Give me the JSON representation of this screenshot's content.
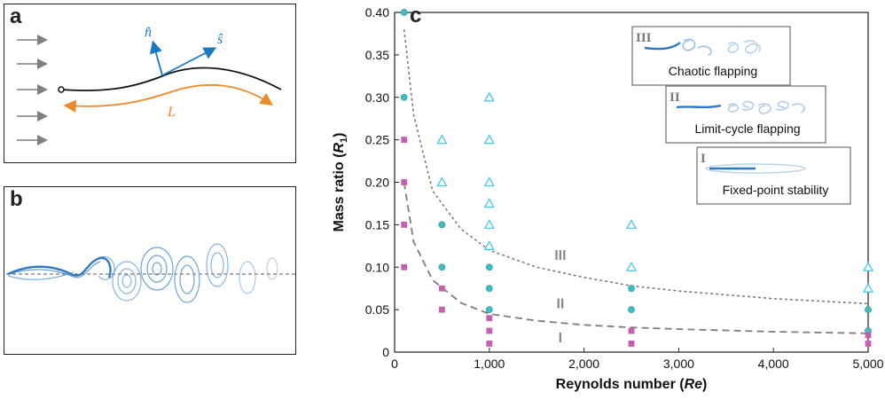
{
  "panels": {
    "a": {
      "letter": "a",
      "normal_vector": "n̂",
      "tangent_vector": "ŝ",
      "length_label": "L"
    },
    "b": {
      "letter": "b"
    },
    "c": {
      "letter": "c"
    }
  },
  "colors": {
    "arrow_gray": "#7f7f7f",
    "vector_blue": "#1a7abf",
    "length_orange": "#ea8a2a",
    "wake_blue": "#2f79c4",
    "triangle_cyan": "#4cc6e6",
    "circle_teal": "#3fbcc0",
    "square_magenta": "#c65fb0",
    "curve_gray": "#7d7d7d"
  },
  "chart_data": {
    "type": "scatter",
    "xlabel": "Reynolds number (Re)",
    "ylabel": "Mass ratio (R1)",
    "xlim": [
      0,
      5000
    ],
    "ylim": [
      0,
      0.4
    ],
    "xticks": [
      0,
      1000,
      2000,
      3000,
      4000,
      5000
    ],
    "xtick_labels": [
      "0",
      "1,000",
      "2,000",
      "3,000",
      "4,000",
      "5,000"
    ],
    "yticks": [
      0,
      0.05,
      0.1,
      0.15,
      0.2,
      0.25,
      0.3,
      0.35,
      0.4
    ],
    "ytick_labels": [
      "0",
      "0.05",
      "0.10",
      "0.15",
      "0.20",
      "0.25",
      "0.30",
      "0.35",
      "0.40"
    ],
    "grid": false,
    "series": [
      {
        "marker": "triangle",
        "points": [
          [
            500,
            0.25
          ],
          [
            500,
            0.2
          ],
          [
            1000,
            0.3
          ],
          [
            1000,
            0.25
          ],
          [
            1000,
            0.2
          ],
          [
            1000,
            0.175
          ],
          [
            1000,
            0.15
          ],
          [
            1000,
            0.125
          ],
          [
            2500,
            0.15
          ],
          [
            2500,
            0.1
          ],
          [
            5000,
            0.1
          ],
          [
            5000,
            0.075
          ]
        ]
      },
      {
        "marker": "circle",
        "points": [
          [
            100,
            0.4
          ],
          [
            100,
            0.3
          ],
          [
            500,
            0.15
          ],
          [
            500,
            0.1
          ],
          [
            1000,
            0.1
          ],
          [
            1000,
            0.075
          ],
          [
            1000,
            0.05
          ],
          [
            2500,
            0.075
          ],
          [
            2500,
            0.05
          ],
          [
            5000,
            0.05
          ],
          [
            5000,
            0.025
          ]
        ]
      },
      {
        "marker": "square",
        "points": [
          [
            100,
            0.25
          ],
          [
            100,
            0.2
          ],
          [
            100,
            0.15
          ],
          [
            100,
            0.1
          ],
          [
            500,
            0.075
          ],
          [
            500,
            0.05
          ],
          [
            1000,
            0.04
          ],
          [
            1000,
            0.025
          ],
          [
            1000,
            0.01
          ],
          [
            2500,
            0.025
          ],
          [
            2500,
            0.01
          ],
          [
            5000,
            0.02
          ],
          [
            5000,
            0.01
          ]
        ]
      }
    ],
    "boundary_curves": [
      {
        "between": "II-III",
        "points": [
          [
            100,
            0.38
          ],
          [
            200,
            0.28
          ],
          [
            400,
            0.19
          ],
          [
            700,
            0.145
          ],
          [
            1000,
            0.12
          ],
          [
            1500,
            0.1
          ],
          [
            2000,
            0.088
          ],
          [
            2500,
            0.078
          ],
          [
            3000,
            0.072
          ],
          [
            4000,
            0.063
          ],
          [
            5000,
            0.057
          ]
        ]
      },
      {
        "between": "I-II",
        "points": [
          [
            100,
            0.2
          ],
          [
            200,
            0.13
          ],
          [
            400,
            0.085
          ],
          [
            700,
            0.058
          ],
          [
            1000,
            0.045
          ],
          [
            1500,
            0.037
          ],
          [
            2000,
            0.032
          ],
          [
            2500,
            0.029
          ],
          [
            3000,
            0.027
          ],
          [
            4000,
            0.024
          ],
          [
            5000,
            0.022
          ]
        ]
      }
    ],
    "region_labels": [
      {
        "text": "III",
        "x": 1750,
        "y": 0.115
      },
      {
        "text": "II",
        "x": 1750,
        "y": 0.058
      },
      {
        "text": "I",
        "x": 1750,
        "y": 0.018
      }
    ],
    "insets": [
      {
        "roman": "III",
        "label": "Chaotic flapping"
      },
      {
        "roman": "II",
        "label": "Limit-cycle flapping"
      },
      {
        "roman": "I",
        "label": "Fixed-point stability"
      }
    ]
  }
}
